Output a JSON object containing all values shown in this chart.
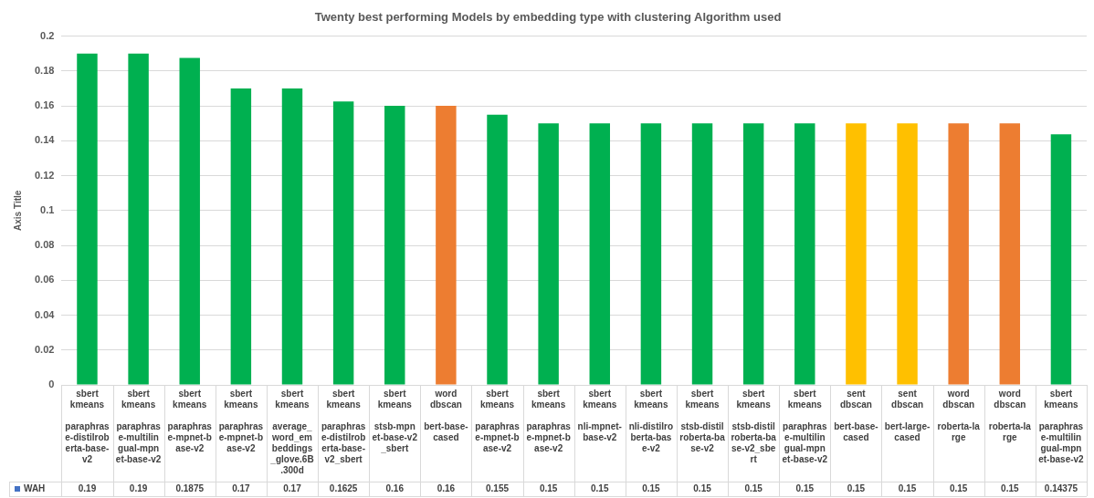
{
  "chart_data": {
    "type": "bar",
    "title": "Twenty best performing Models by embedding type with clustering Algorithm used",
    "ylabel": "Axis Title",
    "categories": [
      "sbert\nkmeans\nparaphrase-distilroberta-base-v2",
      "sbert\nkmeans\nparaphrase-multilingual-mpnet-base-v2",
      "sbert\nkmeans\nparaphrase-mpnet-base-v2",
      "sbert\nkmeans\nparaphrase-mpnet-base-v2",
      "sbert\nkmeans\naverage_word_embeddings_glove.6B.300d",
      "sbert\nkmeans\nparaphrase-distilroberta-base-v2_sbert",
      "sbert\nkmeans\nstsb-mpnet-base-v2_sbert",
      "word\ndbscan\nbert-base-cased",
      "sbert\nkmeans\nparaphrase-mpnet-base-v2",
      "sbert\nkmeans\nparaphrase-mpnet-base-v2",
      "sbert\nkmeans\nnli-mpnet-base-v2",
      "sbert\nkmeans\nnli-distilroberta-base-v2",
      "sbert\nkmeans\nstsb-distilroberta-base-v2",
      "sbert\nkmeans\nstsb-distilroberta-base-v2_sbert",
      "sbert\nkmeans\nparaphrase-multilingual-mpnet-base-v2",
      "sent\ndbscan\nbert-base-cased",
      "sent\ndbscan\nbert-large-cased",
      "word\ndbscan\nroberta-large",
      "word\ndbscan\nroberta-large",
      "sbert\nkmeans\nparaphrase-multilingual-mpnet-base-v2"
    ],
    "series": [
      {
        "name": "WAH",
        "color": "#4472c4",
        "values": [
          0.19,
          0.19,
          0.1875,
          0.17,
          0.17,
          0.1625,
          0.16,
          0.16,
          0.155,
          0.15,
          0.15,
          0.15,
          0.15,
          0.15,
          0.15,
          0.15,
          0.15,
          0.15,
          0.15,
          0.14375
        ],
        "colors": [
          "#00b050",
          "#00b050",
          "#00b050",
          "#00b050",
          "#00b050",
          "#00b050",
          "#00b050",
          "#ed7d31",
          "#00b050",
          "#00b050",
          "#00b050",
          "#00b050",
          "#00b050",
          "#00b050",
          "#00b050",
          "#ffc000",
          "#ffc000",
          "#ed7d31",
          "#ed7d31",
          "#00b050"
        ]
      }
    ],
    "ylim": [
      0,
      0.2
    ],
    "yticks": [
      0,
      0.02,
      0.04,
      0.06,
      0.08,
      0.1,
      0.12,
      0.14,
      0.16,
      0.18,
      0.2
    ],
    "grid": "y",
    "legend": "bottom",
    "data_labels": true
  }
}
